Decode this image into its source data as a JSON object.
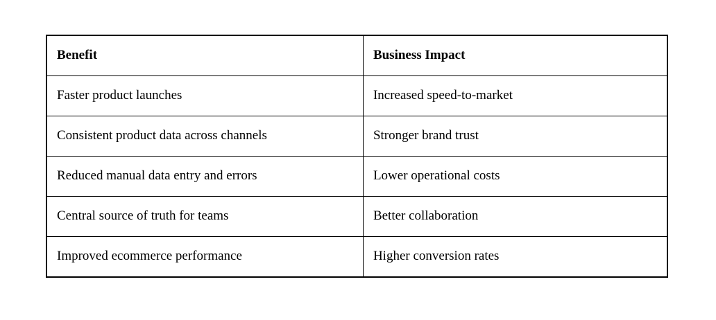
{
  "table": {
    "headers": {
      "benefit": "Benefit",
      "impact": "Business Impact"
    },
    "rows": [
      {
        "benefit": "Faster product launches",
        "impact": "Increased speed-to-market"
      },
      {
        "benefit": "Consistent product data across channels",
        "impact": "Stronger brand trust"
      },
      {
        "benefit": "Reduced manual data entry and errors",
        "impact": "Lower operational costs"
      },
      {
        "benefit": "Central source of truth for teams",
        "impact": "Better collaboration"
      },
      {
        "benefit": "Improved ecommerce performance",
        "impact": "Higher conversion rates"
      }
    ],
    "colors": {
      "border": "#000000",
      "background": "#ffffff",
      "text": "#000000"
    }
  }
}
